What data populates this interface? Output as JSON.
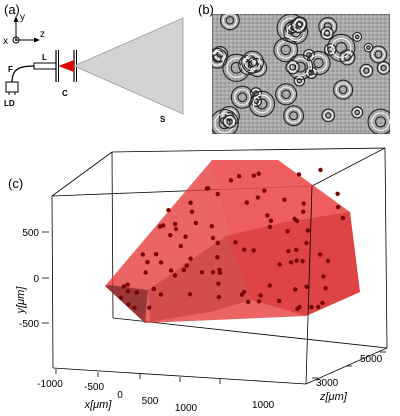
{
  "panels": {
    "a": {
      "label": "(a)"
    },
    "b": {
      "label": "(b)"
    },
    "c": {
      "label": "(c)"
    }
  },
  "schematic": {
    "axis_x": "x",
    "axis_y": "y",
    "axis_z": "z",
    "fiber": "F",
    "laser_diode": "LD",
    "lens": "L",
    "cell": "C",
    "screen": "S"
  },
  "plot3d": {
    "x_axis_label": "x[μm]",
    "y_axis_label": "y[μm]",
    "z_axis_label": "z[μm]",
    "x_ticks": [
      "-1000",
      "-500",
      "0",
      "500",
      "1000"
    ],
    "y_ticks": [
      "500",
      "0",
      "-500"
    ],
    "z_ticks": [
      "1000",
      "3000",
      "5000"
    ]
  },
  "colors": {
    "cone_fill": "#d3d3d3",
    "beam_red": "#e00000",
    "volume_red": "#e53a3a",
    "particle": "#7a0000"
  }
}
